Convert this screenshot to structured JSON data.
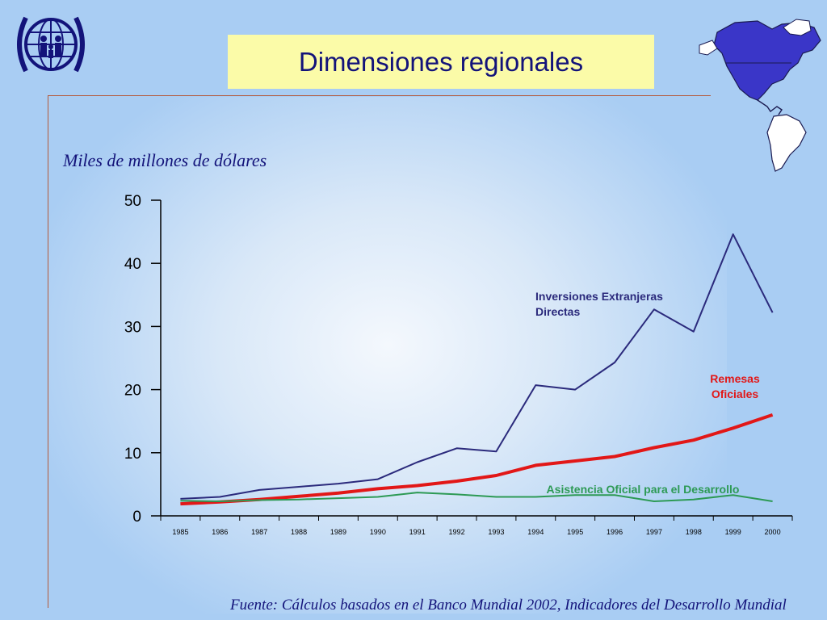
{
  "slide": {
    "title": "Dimensiones regionales",
    "unit_label": "Miles de millones de dólares",
    "source": "Fuente:  Cálculos basados en el Banco Mundial 2002, Indicadores del Desarrollo Mundial"
  },
  "icons": {
    "logo": "org-logo-family-globe",
    "map": "americas-map"
  },
  "colors": {
    "background": "#a9cdf3",
    "title_bg": "#fbfba8",
    "title_text": "#13137a",
    "frame": "#b45a3c"
  },
  "chart_data": {
    "type": "line",
    "title": "",
    "ylabel": "Miles de millones de dólares",
    "xlabel": "",
    "x": [
      "1985",
      "1986",
      "1987",
      "1988",
      "1989",
      "1990",
      "1991",
      "1992",
      "1993",
      "1994",
      "1995",
      "1996",
      "1997",
      "1998",
      "1999",
      "2000"
    ],
    "ylim": [
      0,
      50
    ],
    "yticks": [
      "0",
      "10",
      "20",
      "30",
      "40",
      "50"
    ],
    "grid": false,
    "series": [
      {
        "name": "Inversiones Extranjeras Directas",
        "label_lines": [
          "Inversiones Extranjeras",
          "Directas"
        ],
        "color": "#2b2a7c",
        "values": [
          2.7,
          3.0,
          4.1,
          4.6,
          5.1,
          5.8,
          8.5,
          10.7,
          10.2,
          20.7,
          20.0,
          24.3,
          32.7,
          29.2,
          44.6,
          32.2
        ]
      },
      {
        "name": "Remesas Oficiales",
        "label_lines": [
          "Remesas",
          "Oficiales"
        ],
        "color": "#e21717",
        "values": [
          1.9,
          2.2,
          2.6,
          3.1,
          3.6,
          4.3,
          4.8,
          5.5,
          6.4,
          8.0,
          8.7,
          9.4,
          10.8,
          12.0,
          13.9,
          16.0
        ]
      },
      {
        "name": "Asistencia Oficial para el Desarrollo",
        "label_lines": [
          "Asistencia Oficial para el Desarrollo"
        ],
        "color": "#2d9a55",
        "values": [
          2.4,
          2.3,
          2.5,
          2.6,
          2.8,
          3.0,
          3.7,
          3.4,
          3.0,
          3.0,
          3.3,
          3.3,
          2.3,
          2.6,
          3.3,
          2.3
        ]
      }
    ]
  }
}
